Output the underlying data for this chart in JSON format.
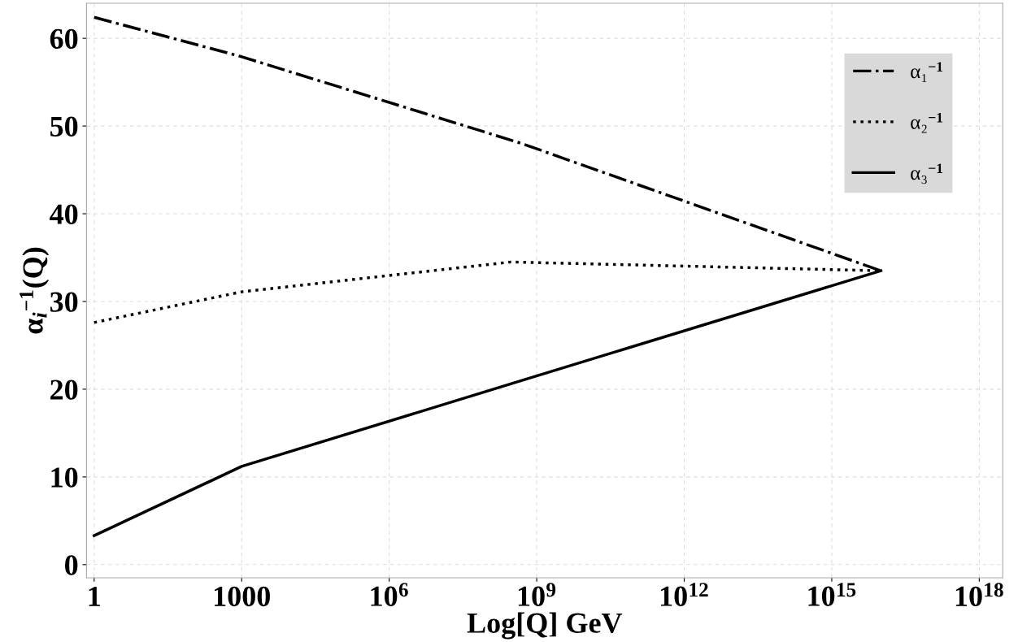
{
  "chart_data": {
    "type": "line",
    "xlabel": "Log[Q] GeV",
    "ylabel": "α$_{i}$$^{−1}$(Q)",
    "log": "x",
    "xlim": [
      0.7,
      3e+18
    ],
    "ylim": [
      -1.5,
      64
    ],
    "xticks": [
      {
        "value": 1,
        "label": "1"
      },
      {
        "value": 1000,
        "label": "1000"
      },
      {
        "value": 1000000.0,
        "label": "10$^{6}$"
      },
      {
        "value": 1000000000.0,
        "label": "10$^{9}$"
      },
      {
        "value": 1000000000000.0,
        "label": "10$^{12}$"
      },
      {
        "value": 1000000000000000.0,
        "label": "10$^{15}$"
      },
      {
        "value": 1e+18,
        "label": "10$^{18}$"
      }
    ],
    "yticks": [
      0,
      10,
      20,
      30,
      40,
      50,
      60
    ],
    "grid": true,
    "legend": "top right",
    "marker": "none",
    "series": [
      {
        "name": "α₁$^{−1}$",
        "color": "#000000",
        "line_style": "dashdot",
        "x": [
          1,
          1000,
          500000000.0,
          1e+16
        ],
        "values": [
          62.4,
          57.9,
          48.0,
          33.5
        ]
      },
      {
        "name": "α₂$^{−1}$",
        "color": "#000000",
        "line_style": "dotted",
        "x": [
          1,
          1000,
          300000000.0,
          1e+16
        ],
        "values": [
          27.6,
          31.1,
          34.5,
          33.5
        ]
      },
      {
        "name": "α₃$^{−1}$",
        "color": "#000000",
        "line_style": "solid",
        "x": [
          1,
          1000,
          500000000.0,
          1e+16
        ],
        "values": [
          3.3,
          11.2,
          21.0,
          33.5
        ]
      }
    ]
  }
}
